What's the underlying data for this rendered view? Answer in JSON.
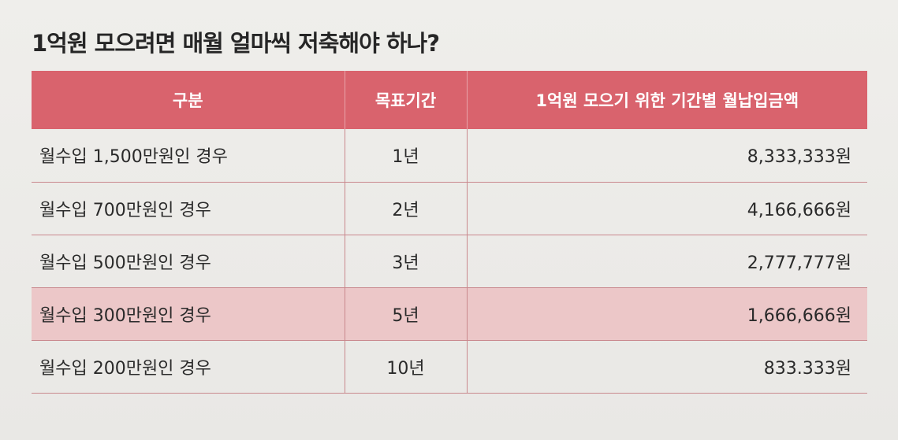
{
  "title": "1억원 모으려면 매월 얼마씩 저축해야 하나?",
  "table": {
    "headers": [
      "구분",
      "목표기간",
      "1억원 모으기 위한 기간별 월납입금액"
    ],
    "rows": [
      {
        "label": "월수입 1,500만원인 경우",
        "period": "1년",
        "amount": "8,333,333원",
        "highlight": false
      },
      {
        "label": "월수입 700만원인 경우",
        "period": "2년",
        "amount": "4,166,666원",
        "highlight": false
      },
      {
        "label": "월수입 500만원인 경우",
        "period": "3년",
        "amount": "2,777,777원",
        "highlight": false
      },
      {
        "label": "월수입 300만원인 경우",
        "period": "5년",
        "amount": "1,666,666원",
        "highlight": true
      },
      {
        "label": "월수입 200만원인 경우",
        "period": "10년",
        "amount": "833.333원",
        "highlight": false
      }
    ]
  },
  "colors": {
    "header_bg": "#d9636d",
    "highlight_bg": "#ecc7c8",
    "rule": "#c9888d"
  }
}
